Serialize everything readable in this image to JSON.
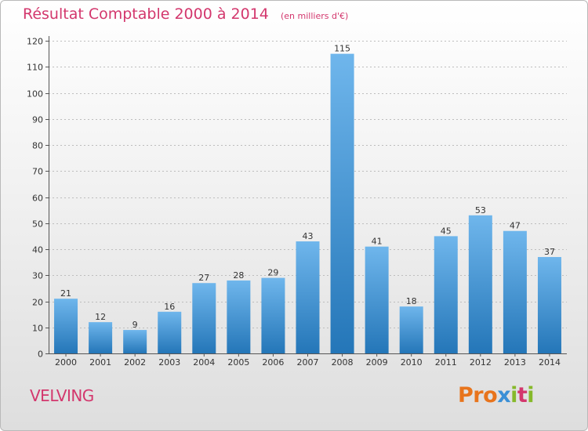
{
  "header": {
    "title": "Résultat Comptable 2000 à 2014",
    "subtitle": "(en milliers d'€)"
  },
  "footer": {
    "commune": "VELVING",
    "logo_text": "Proxiti"
  },
  "colors": {
    "title": "#d3376d",
    "bar_light": "#6fb6ec",
    "bar_dark": "#2476b8",
    "grid": "#bdbdbd",
    "logo": [
      "#e8741c",
      "#e8741c",
      "#e8741c",
      "#3a8fd6",
      "#86b92a",
      "#d3376d",
      "#86b92a"
    ]
  },
  "chart_data": {
    "type": "bar",
    "title": "Résultat Comptable 2000 à 2014",
    "subtitle": "(en milliers d'€)",
    "xlabel": "",
    "ylabel": "",
    "categories": [
      "2000",
      "2001",
      "2002",
      "2003",
      "2004",
      "2005",
      "2006",
      "2007",
      "2008",
      "2009",
      "2010",
      "2011",
      "2012",
      "2013",
      "2014"
    ],
    "values": [
      21,
      12,
      9,
      16,
      27,
      28,
      29,
      43,
      115,
      41,
      18,
      45,
      53,
      47,
      37
    ],
    "ylim": [
      0,
      120
    ],
    "yticks": [
      0,
      10,
      20,
      30,
      40,
      50,
      60,
      70,
      80,
      90,
      100,
      110,
      120
    ],
    "grid": true,
    "legend": "none",
    "data_labels": true
  }
}
